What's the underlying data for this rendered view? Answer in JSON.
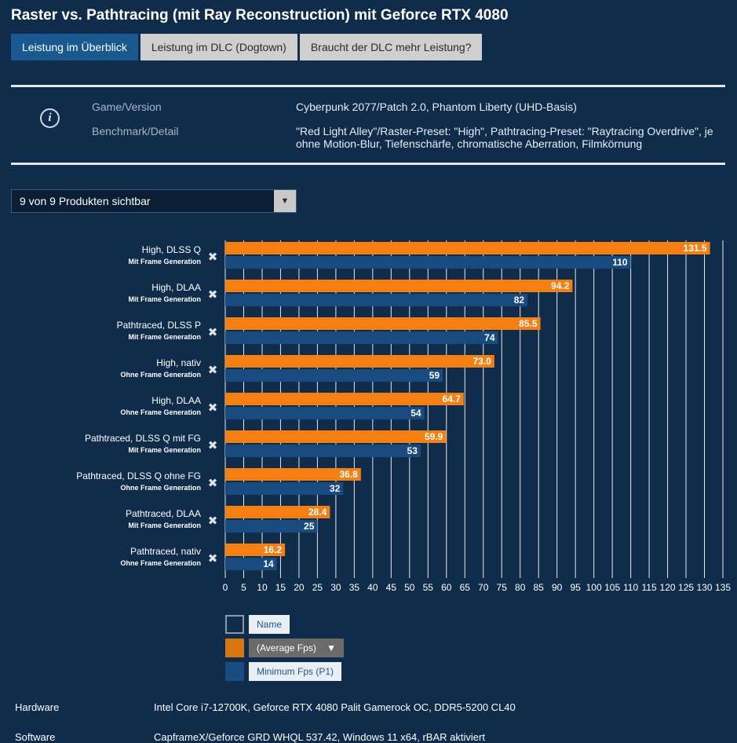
{
  "title": "Raster vs. Pathtracing (mit Ray Reconstruction) mit Geforce RTX 4080",
  "tabs": [
    "Leistung im Überblick",
    "Leistung im DLC (Dogtown)",
    "Braucht der DLC mehr Leistung?"
  ],
  "info": {
    "game_label": "Game/Version",
    "game_value": "Cyberpunk 2077/Patch 2.0, Phantom Liberty (UHD-Basis)",
    "bench_label": "Benchmark/Detail",
    "bench_value": "\"Red Light Alley\"/Raster-Preset: \"High\", Pathtracing-Preset: \"Raytracing Overdrive\", je ohne Motion-Blur, Tiefenschärfe, chromatische Aberration, Filmkörnung"
  },
  "dropdown": {
    "label": "9 von 9 Produkten sichtbar"
  },
  "chart_data": {
    "type": "bar",
    "orientation": "horizontal",
    "categories": [
      {
        "name": "High, DLSS Q",
        "sub": "Mit Frame Generation"
      },
      {
        "name": "High, DLAA",
        "sub": "Mit Frame Generation"
      },
      {
        "name": "Pathtraced, DLSS P",
        "sub": "Mit Frame Generation"
      },
      {
        "name": "High, nativ",
        "sub": "Ohne Frame Generation"
      },
      {
        "name": "High, DLAA",
        "sub": "Ohne Frame Generation"
      },
      {
        "name": "Pathtraced, DLSS Q mit FG",
        "sub": "Mit Frame Generation"
      },
      {
        "name": "Pathtraced, DLSS Q ohne FG",
        "sub": "Ohne Frame Generation"
      },
      {
        "name": "Pathtraced, DLAA",
        "sub": "Mit Frame Generation"
      },
      {
        "name": "Pathtraced, nativ",
        "sub": "Ohne Frame Generation"
      }
    ],
    "series": [
      {
        "name": "(Average Fps)",
        "color": "#f47f13",
        "values": [
          131.5,
          94.2,
          85.5,
          73.0,
          64.7,
          59.9,
          36.8,
          28.4,
          16.2
        ],
        "labels": [
          "131.5",
          "94.2",
          "85.5",
          "73.0",
          "64.7",
          "59.9",
          "36.8",
          "28.4",
          "16.2"
        ]
      },
      {
        "name": "Minimum Fps (P1)",
        "color": "#1a4b80",
        "values": [
          110,
          82,
          74,
          59,
          54,
          53,
          32,
          25,
          14
        ],
        "labels": [
          "110",
          "82",
          "74",
          "59",
          "54",
          "53",
          "32",
          "25",
          "14"
        ]
      }
    ],
    "xlim": [
      0,
      135
    ],
    "xticks": [
      0,
      5,
      10,
      15,
      20,
      25,
      30,
      35,
      40,
      45,
      50,
      55,
      60,
      65,
      70,
      75,
      80,
      85,
      90,
      95,
      100,
      105,
      110,
      115,
      120,
      125,
      130,
      135
    ],
    "remove_glyph": "✖"
  },
  "legend": {
    "name_label": "Name",
    "avg_label": "(Average Fps)",
    "min_label": "Minimum Fps (P1)",
    "arrow": "▼",
    "name_color": "#0f2d4b",
    "avg_color": "#d9740f",
    "min_color": "#1a4b80"
  },
  "footer": {
    "hardware_label": "Hardware",
    "hardware_value": "Intel Core i7-12700K, Geforce RTX 4080 Palit Gamerock OC, DDR5-5200 CL40",
    "software_label": "Software",
    "software_value": "CapframeX/Geforce GRD WHQL 537.42, Windows 11 x64, rBAR aktiviert"
  }
}
